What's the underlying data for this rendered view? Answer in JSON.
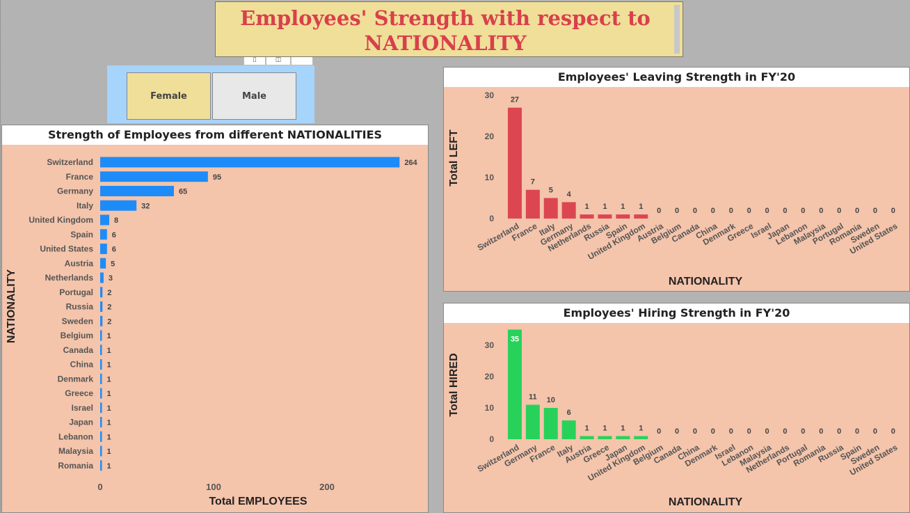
{
  "header": {
    "title_line1": "Employees' Strength with respect to",
    "title_line2": "NATIONALITY"
  },
  "slicer": {
    "items": [
      {
        "label": "Female",
        "selected": true
      },
      {
        "label": "Male",
        "selected": false
      }
    ]
  },
  "colors": {
    "bar_blue": "#1e8cf8",
    "bar_red": "#dc4650",
    "bar_green": "#28d25a",
    "panel_bg": "#f4c4ab",
    "title_bg": "#f0df98",
    "title_text": "#d8404c",
    "slicer_bg": "#a6d4fb"
  },
  "chart_data": [
    {
      "type": "bar",
      "orientation": "horizontal",
      "title": "Strength of Employees from different NATIONALITIES",
      "xlabel": "Total EMPLOYEES",
      "ylabel": "NATIONALITY",
      "xlim": [
        0,
        270
      ],
      "xticks": [
        0,
        100,
        200
      ],
      "categories": [
        "Switzerland",
        "France",
        "Germany",
        "Italy",
        "United Kingdom",
        "Spain",
        "United States",
        "Austria",
        "Netherlands",
        "Portugal",
        "Russia",
        "Sweden",
        "Belgium",
        "Canada",
        "China",
        "Denmark",
        "Greece",
        "Israel",
        "Japan",
        "Lebanon",
        "Malaysia",
        "Romania"
      ],
      "values": [
        264,
        95,
        65,
        32,
        8,
        6,
        6,
        5,
        3,
        2,
        2,
        2,
        1,
        1,
        1,
        1,
        1,
        1,
        1,
        1,
        1,
        1
      ],
      "grid": false
    },
    {
      "type": "bar",
      "title": "Employees' Leaving Strength in FY'20",
      "xlabel": "NATIONALITY",
      "ylabel": "Total LEFT",
      "ylim": [
        0,
        30
      ],
      "yticks": [
        0,
        10,
        20,
        30
      ],
      "categories": [
        "Switzerland",
        "France",
        "Italy",
        "Germany",
        "Netherlands",
        "Russia",
        "Spain",
        "United Kingdom",
        "Austria",
        "Belgium",
        "Canada",
        "China",
        "Denmark",
        "Greece",
        "Israel",
        "Japan",
        "Lebanon",
        "Malaysia",
        "Portugal",
        "Romania",
        "Sweden",
        "United States"
      ],
      "values": [
        27,
        7,
        5,
        4,
        1,
        1,
        1,
        1,
        0,
        0,
        0,
        0,
        0,
        0,
        0,
        0,
        0,
        0,
        0,
        0,
        0,
        0
      ],
      "grid": false
    },
    {
      "type": "bar",
      "title": "Employees' Hiring Strength in FY'20",
      "xlabel": "NATIONALITY",
      "ylabel": "Total HIRED",
      "ylim": [
        0,
        35
      ],
      "yticks": [
        0,
        10,
        20,
        30
      ],
      "categories": [
        "Switzerland",
        "Germany",
        "France",
        "Italy",
        "Austria",
        "Greece",
        "Japan",
        "United Kingdom",
        "Belgium",
        "Canada",
        "China",
        "Denmark",
        "Israel",
        "Lebanon",
        "Malaysia",
        "Netherlands",
        "Portugal",
        "Romania",
        "Russia",
        "Spain",
        "Sweden",
        "United States"
      ],
      "values": [
        35,
        11,
        10,
        6,
        1,
        1,
        1,
        1,
        0,
        0,
        0,
        0,
        0,
        0,
        0,
        0,
        0,
        0,
        0,
        0,
        0,
        0
      ],
      "grid": false
    }
  ]
}
